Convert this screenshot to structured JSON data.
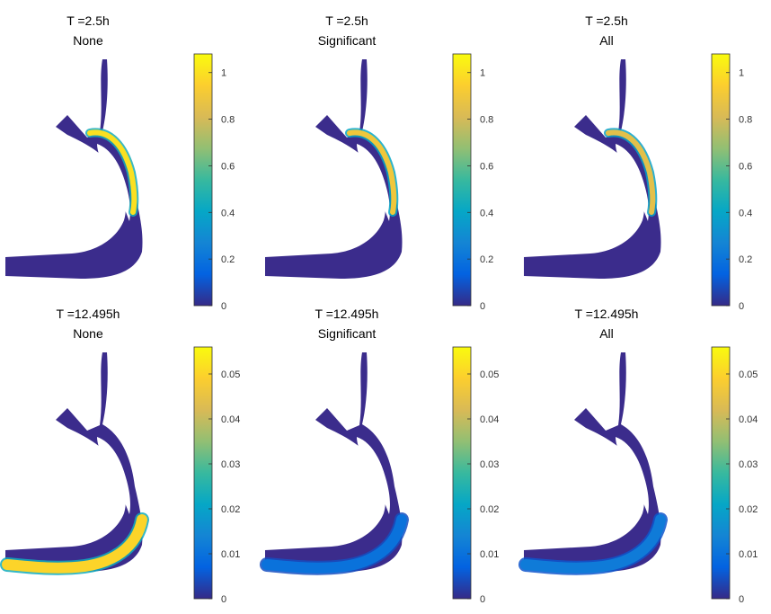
{
  "figure": {
    "background": "#ffffff",
    "river_color": "#3b2c8c",
    "colormap": "parula",
    "colormap_stops": [
      "#352a87",
      "#0363e1",
      "#1485d4",
      "#06a7c6",
      "#38b99e",
      "#92bf73",
      "#d9ba56",
      "#fcce2e",
      "#f9fb0e"
    ]
  },
  "chart_data": [
    {
      "type": "heatmap",
      "time_label": "T =2.5h",
      "scenario": "None",
      "clim": [
        0,
        1.08
      ],
      "colorbar_ticks": [
        0,
        0.2,
        0.4,
        0.6,
        0.8,
        1
      ],
      "colorbar_tick_labels": [
        "0",
        "0.2",
        "0.4",
        "0.6",
        "0.8",
        "1"
      ],
      "peak_value": 1.0,
      "hotspot": "upper-channel"
    },
    {
      "type": "heatmap",
      "time_label": "T =2.5h",
      "scenario": "Significant",
      "clim": [
        0,
        1.08
      ],
      "colorbar_ticks": [
        0,
        0.2,
        0.4,
        0.6,
        0.8,
        1
      ],
      "colorbar_tick_labels": [
        "0",
        "0.2",
        "0.4",
        "0.6",
        "0.8",
        "1"
      ],
      "peak_value": 0.9,
      "hotspot": "upper-channel"
    },
    {
      "type": "heatmap",
      "time_label": "T =2.5h",
      "scenario": "All",
      "clim": [
        0,
        1.08
      ],
      "colorbar_ticks": [
        0,
        0.2,
        0.4,
        0.6,
        0.8,
        1
      ],
      "colorbar_tick_labels": [
        "0",
        "0.2",
        "0.4",
        "0.6",
        "0.8",
        "1"
      ],
      "peak_value": 0.85,
      "hotspot": "upper-channel"
    },
    {
      "type": "heatmap",
      "time_label": "T =12.495h",
      "scenario": "None",
      "clim": [
        0,
        0.056
      ],
      "colorbar_ticks": [
        0,
        0.01,
        0.02,
        0.03,
        0.04,
        0.05
      ],
      "colorbar_tick_labels": [
        "0",
        "0.01",
        "0.02",
        "0.03",
        "0.04",
        "0.05"
      ],
      "peak_value": 0.05,
      "hotspot": "lower-bend"
    },
    {
      "type": "heatmap",
      "time_label": "T =12.495h",
      "scenario": "Significant",
      "clim": [
        0,
        0.056
      ],
      "colorbar_ticks": [
        0,
        0.01,
        0.02,
        0.03,
        0.04,
        0.05
      ],
      "colorbar_tick_labels": [
        "0",
        "0.01",
        "0.02",
        "0.03",
        "0.04",
        "0.05"
      ],
      "peak_value": 0.01,
      "hotspot": "lower-bend"
    },
    {
      "type": "heatmap",
      "time_label": "T =12.495h",
      "scenario": "All",
      "clim": [
        0,
        0.056
      ],
      "colorbar_ticks": [
        0,
        0.01,
        0.02,
        0.03,
        0.04,
        0.05
      ],
      "colorbar_tick_labels": [
        "0",
        "0.01",
        "0.02",
        "0.03",
        "0.04",
        "0.05"
      ],
      "peak_value": 0.012,
      "hotspot": "lower-bend"
    }
  ]
}
